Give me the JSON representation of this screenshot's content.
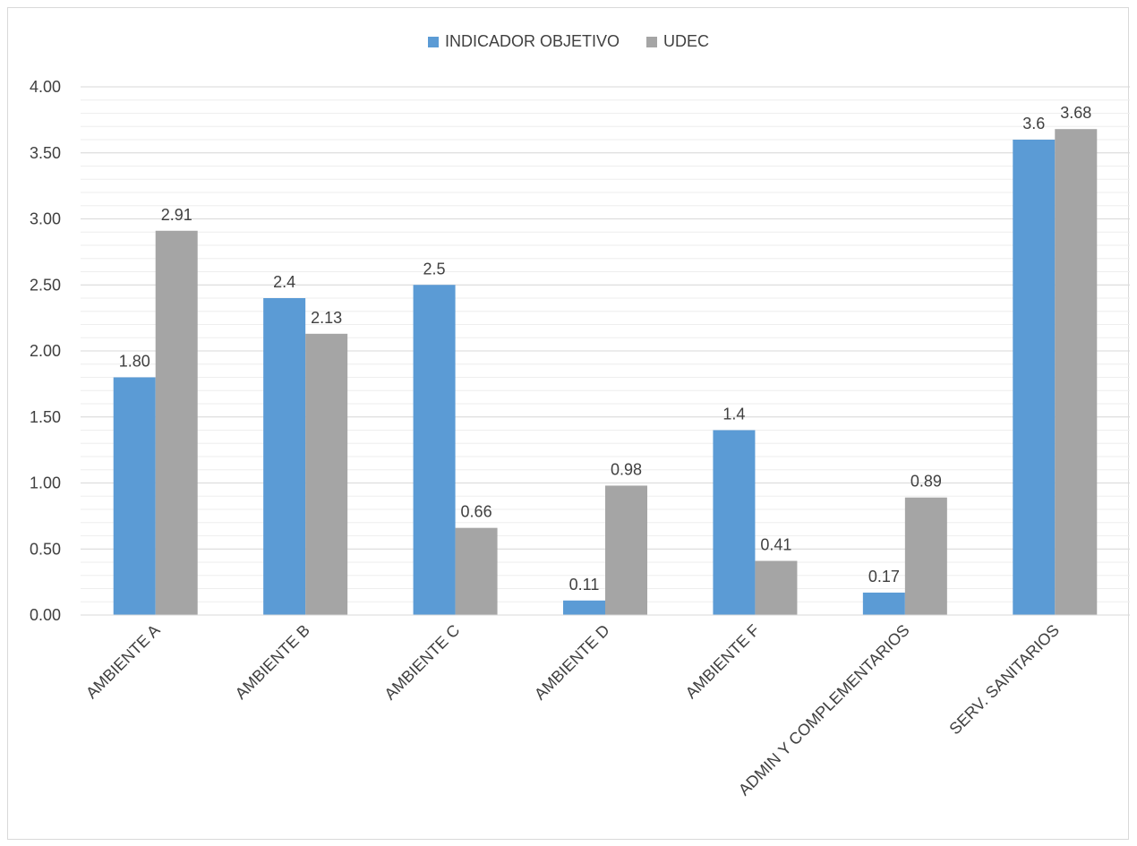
{
  "colors": {
    "series_a": "#5b9bd5",
    "series_b": "#a5a5a5",
    "grid": "#d9d9d9",
    "text": "#404040"
  },
  "chart_data": {
    "type": "bar",
    "title": "",
    "xlabel": "",
    "ylabel": "",
    "ylim": [
      0,
      4
    ],
    "y_ticks": [
      "0.00",
      "0.50",
      "1.00",
      "1.50",
      "2.00",
      "2.50",
      "3.00",
      "3.50",
      "4.00"
    ],
    "grid": true,
    "legend_position": "top-center",
    "categories": [
      "AMBIENTE A",
      "AMBIENTE B",
      "AMBIENTE C",
      "AMBIENTE D",
      "AMBIENTE F",
      "ADMIN Y COMPLEMENTARIOS",
      "SERV. SANITARIOS"
    ],
    "series": [
      {
        "name": "INDICADOR OBJETIVO",
        "color": "#5b9bd5",
        "values": [
          1.8,
          2.4,
          2.5,
          0.11,
          1.4,
          0.17,
          3.6
        ],
        "labels": [
          "1.80",
          "2.4",
          "2.5",
          "0.11",
          "1.4",
          "0.17",
          "3.6"
        ]
      },
      {
        "name": "UDEC",
        "color": "#a5a5a5",
        "values": [
          2.91,
          2.13,
          0.66,
          0.98,
          0.41,
          0.89,
          3.68
        ],
        "labels": [
          "2.91",
          "2.13",
          "0.66",
          "0.98",
          "0.41",
          "0.89",
          "3.68"
        ]
      }
    ]
  }
}
